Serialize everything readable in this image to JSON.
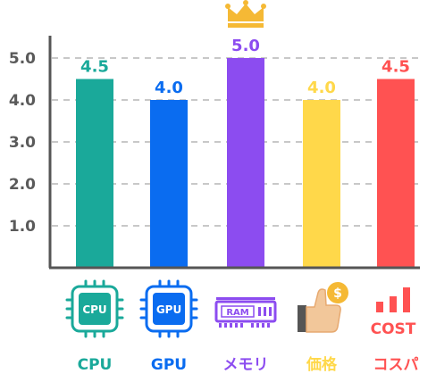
{
  "chart_data": {
    "type": "bar",
    "categories": [
      "CPU",
      "GPU",
      "メモリ",
      "価格",
      "コスパ"
    ],
    "values": [
      4.5,
      4.0,
      5.0,
      4.0,
      4.5
    ],
    "value_labels": [
      "4.5",
      "4.0",
      "5.0",
      "4.0",
      "4.5"
    ],
    "colors": [
      "#1aa99a",
      "#0a6cf0",
      "#8c4cf0",
      "#ffd84a",
      "#ff5252"
    ],
    "y_ticks": [
      "1.0",
      "2.0",
      "3.0",
      "4.0",
      "5.0"
    ],
    "ylim": [
      0,
      5.5
    ],
    "grid": true,
    "highlight": "crown-icon above メモリ",
    "icon_labels": [
      "CPU",
      "GPU",
      "RAM",
      "$",
      "COST"
    ],
    "icons": [
      "cpu-chip-icon",
      "gpu-chip-icon",
      "ram-module-icon",
      "thumbs-up-coin-icon",
      "cost-bars-icon"
    ]
  }
}
